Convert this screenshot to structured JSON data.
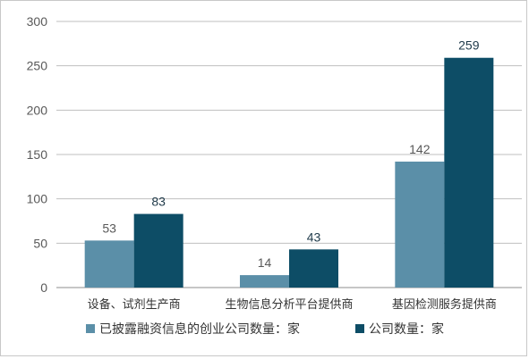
{
  "chart_data": {
    "type": "bar",
    "categories": [
      "设备、试剂生产商",
      "生物信息分析平台提供商",
      "基因检测服务提供商"
    ],
    "series": [
      {
        "name": "已披露融资信息的创业公司数量：家",
        "values": [
          53,
          14,
          142
        ],
        "color": "#5b8fa8"
      },
      {
        "name": "公司数量：家",
        "values": [
          83,
          43,
          259
        ],
        "color": "#0d4d66"
      }
    ],
    "ylim": [
      0,
      300
    ],
    "yticks": [
      0,
      50,
      100,
      150,
      200,
      250,
      300
    ],
    "grid": true,
    "legend": "bottom",
    "title": "",
    "xlabel": "",
    "ylabel": ""
  }
}
